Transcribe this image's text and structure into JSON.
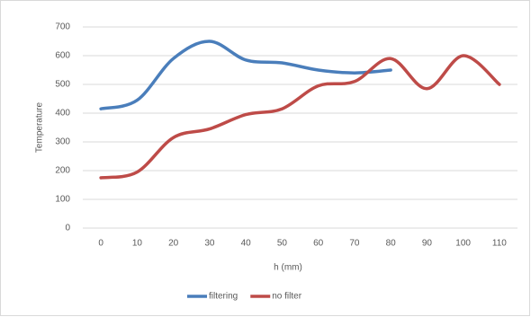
{
  "chart_data": {
    "type": "line",
    "x": [
      0,
      10,
      20,
      30,
      40,
      50,
      60,
      70,
      80,
      90,
      100,
      110
    ],
    "series": [
      {
        "name": "filtering",
        "color": "#4a7ebb",
        "values": [
          415,
          445,
          590,
          650,
          585,
          575,
          550,
          540,
          550,
          null,
          null,
          null
        ]
      },
      {
        "name": "no filter",
        "color": "#be4b48",
        "values": [
          175,
          195,
          315,
          345,
          395,
          415,
          495,
          510,
          590,
          485,
          600,
          500
        ]
      }
    ],
    "xlabel": "h (mm)",
    "ylabel": "Temperature",
    "ylim": [
      0,
      700
    ],
    "yticks": [
      0,
      100,
      200,
      300,
      400,
      500,
      600,
      700
    ],
    "grid": true,
    "legend": "bottom",
    "smooth": true
  }
}
